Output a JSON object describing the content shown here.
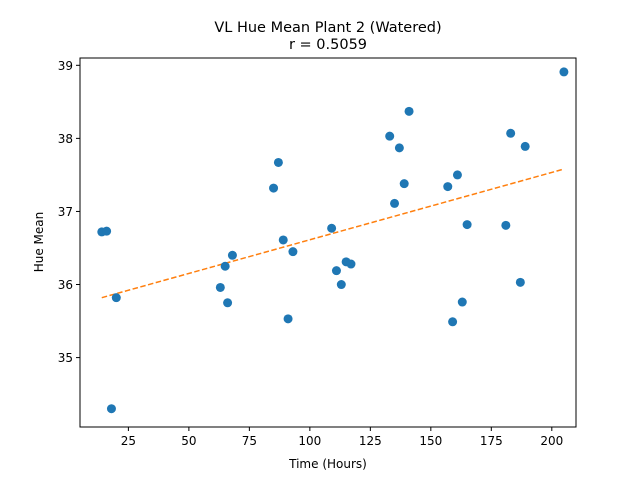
{
  "chart_data": {
    "type": "scatter",
    "title": "VL Hue Mean Plant 2 (Watered)",
    "subtitle": "r = 0.5059",
    "xlabel": "Time (Hours)",
    "ylabel": "Hue Mean",
    "xlim": [
      5,
      210
    ],
    "ylim": [
      34.05,
      39.1
    ],
    "xticks": [
      25,
      50,
      75,
      100,
      125,
      150,
      175,
      200
    ],
    "yticks": [
      35,
      36,
      37,
      38,
      39
    ],
    "grid": false,
    "legend": "none",
    "colors": {
      "points": "#1f77b4",
      "trend": "#ff7f0e"
    },
    "points": [
      [
        14,
        36.72
      ],
      [
        16,
        36.73
      ],
      [
        18,
        34.3
      ],
      [
        20,
        35.82
      ],
      [
        63,
        35.96
      ],
      [
        65,
        36.25
      ],
      [
        66,
        35.75
      ],
      [
        68,
        36.4
      ],
      [
        85,
        37.32
      ],
      [
        87,
        37.67
      ],
      [
        89,
        36.61
      ],
      [
        91,
        35.53
      ],
      [
        93,
        36.45
      ],
      [
        109,
        36.77
      ],
      [
        111,
        36.19
      ],
      [
        113,
        36.0
      ],
      [
        115,
        36.31
      ],
      [
        117,
        36.28
      ],
      [
        133,
        38.03
      ],
      [
        135,
        37.11
      ],
      [
        137,
        37.87
      ],
      [
        139,
        37.38
      ],
      [
        141,
        38.37
      ],
      [
        157,
        37.34
      ],
      [
        159,
        35.49
      ],
      [
        161,
        37.5
      ],
      [
        163,
        35.76
      ],
      [
        165,
        36.82
      ],
      [
        181,
        36.81
      ],
      [
        183,
        38.07
      ],
      [
        187,
        36.03
      ],
      [
        189,
        37.89
      ],
      [
        205,
        38.91
      ]
    ],
    "trendline": {
      "x": [
        14,
        205
      ],
      "y": [
        35.82,
        37.58
      ],
      "style": "dashed"
    }
  }
}
